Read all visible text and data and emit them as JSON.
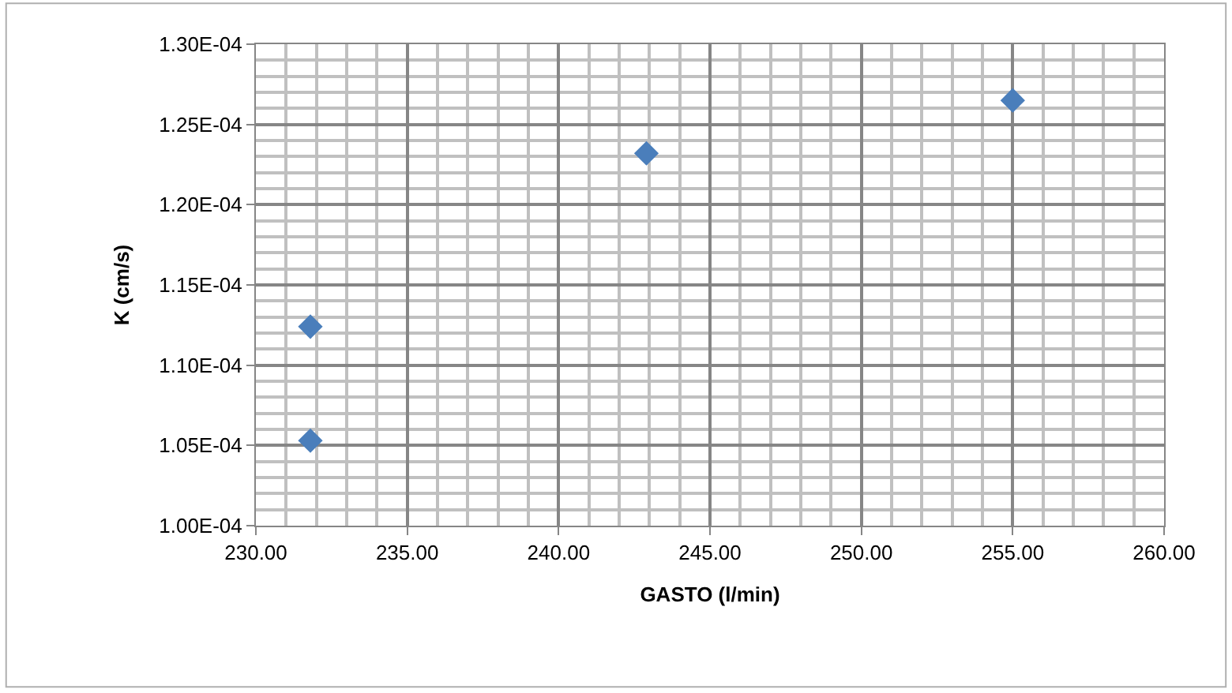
{
  "chart_data": {
    "type": "scatter",
    "xlabel": "GASTO (l/min)",
    "ylabel": "K (cm/s)",
    "x": [
      231.8,
      231.8,
      242.9,
      255.0
    ],
    "series": [
      {
        "color": "#4a7ebb",
        "values": [
          0.0001124,
          0.0001053,
          0.0001232,
          0.0001265
        ]
      }
    ],
    "marker": "diamond",
    "grid": true,
    "xlim": [
      230,
      260
    ],
    "xticks": [
      {
        "value": 230,
        "label": "230.00"
      },
      {
        "value": 235,
        "label": "235.00"
      },
      {
        "value": 240,
        "label": "240.00"
      },
      {
        "value": 245,
        "label": "245.00"
      },
      {
        "value": 250,
        "label": "250.00"
      },
      {
        "value": 255,
        "label": "255.00"
      },
      {
        "value": 260,
        "label": "260.00"
      }
    ],
    "ylim": [
      0.0001,
      0.00013
    ],
    "yticks": [
      {
        "value": 0.0001,
        "label": "1.00E-04"
      },
      {
        "value": 0.000105,
        "label": "1.05E-04"
      },
      {
        "value": 0.00011,
        "label": "1.10E-04"
      },
      {
        "value": 0.000115,
        "label": "1.15E-04"
      },
      {
        "value": 0.00012,
        "label": "1.20E-04"
      },
      {
        "value": 0.000125,
        "label": "1.25E-04"
      },
      {
        "value": 0.00013,
        "label": "1.30E-04"
      }
    ]
  }
}
